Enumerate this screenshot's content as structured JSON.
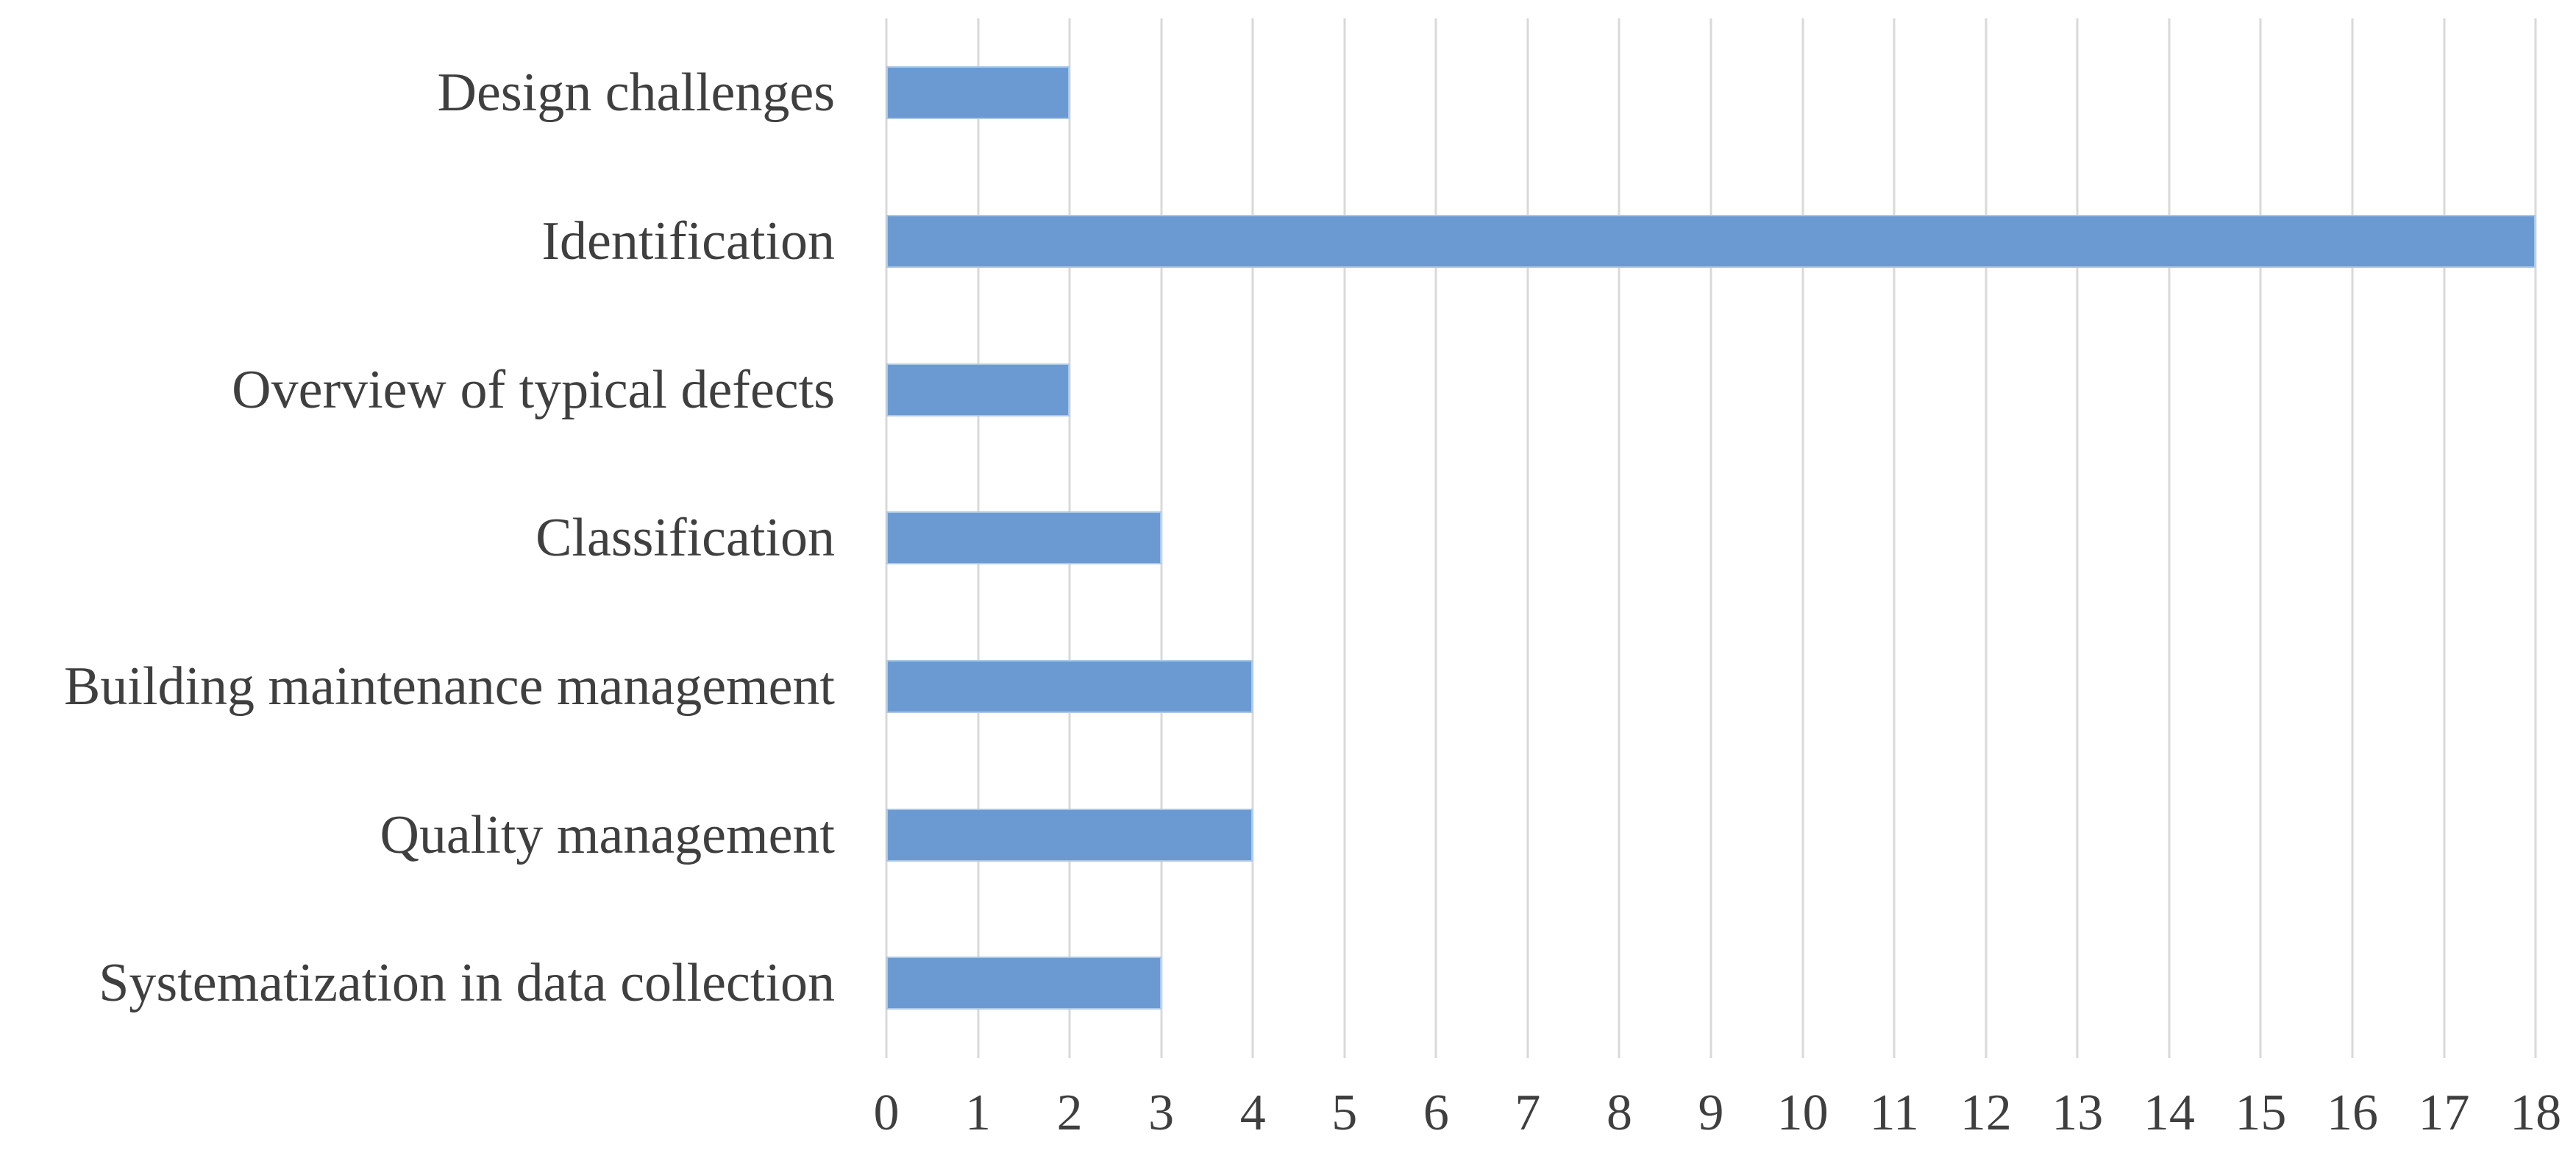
{
  "chart_data": {
    "type": "bar",
    "orientation": "horizontal",
    "title": "",
    "xlabel": "",
    "ylabel": "",
    "categories": [
      "Design challenges",
      "Identification",
      "Overview of typical defects",
      "Classification",
      "Building maintenance management",
      "Quality management",
      "Systematization in data collection"
    ],
    "values": [
      2,
      18,
      2,
      3,
      4,
      4,
      3
    ],
    "xlim": [
      0,
      18
    ],
    "x_ticks": [
      0,
      1,
      2,
      3,
      4,
      5,
      6,
      7,
      8,
      9,
      10,
      11,
      12,
      13,
      14,
      15,
      16,
      17,
      18
    ],
    "grid": "vertical",
    "legend": "none"
  },
  "colors": {
    "background": "#FFFFFF",
    "bar_fill": "#6B9AD2",
    "bar_border": "#ACC8E6",
    "gridline": "#D9D9D9",
    "label_text": "#3F3F3F"
  }
}
